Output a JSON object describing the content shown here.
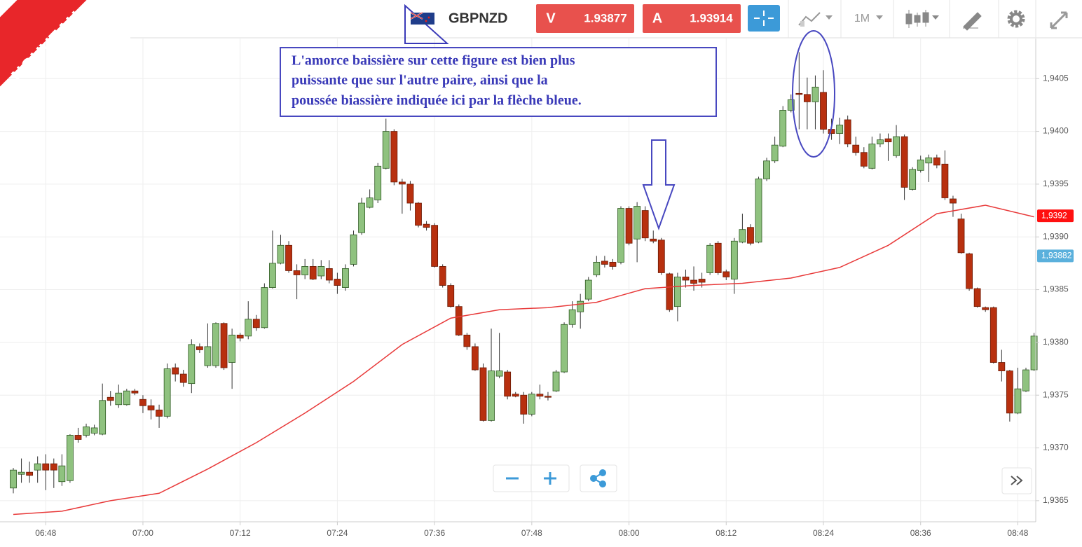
{
  "header": {
    "badge": "NOUVEAU",
    "symbol": "GBPNZD",
    "sell_label": "V",
    "sell_price": "1.93877",
    "buy_label": "A",
    "buy_price": "1.93914",
    "timeframe": "1M"
  },
  "annotation": [
    "L'amorce baissière sur cette figure est bien plus",
    "puissante que sur l'autre paire, ainsi que la",
    "poussée biassière indiquée ici par la flèche bleue."
  ],
  "chart_data": {
    "type": "candlestick",
    "x": [
      "06:44",
      "06:45",
      "06:46",
      "06:47",
      "06:48",
      "06:49",
      "06:50",
      "06:51",
      "06:52",
      "06:53",
      "06:54",
      "06:55",
      "06:56",
      "06:57",
      "06:58",
      "06:59",
      "07:00",
      "07:01",
      "07:02",
      "07:03",
      "07:04",
      "07:05",
      "07:06",
      "07:07",
      "07:08",
      "07:09",
      "07:10",
      "07:11",
      "07:12",
      "07:13",
      "07:14",
      "07:15",
      "07:16",
      "07:17",
      "07:18",
      "07:19",
      "07:20",
      "07:21",
      "07:22",
      "07:23",
      "07:24",
      "07:25",
      "07:26",
      "07:27",
      "07:28",
      "07:29",
      "07:30",
      "07:31",
      "07:32",
      "07:33",
      "07:34",
      "07:35",
      "07:36",
      "07:37",
      "07:38",
      "07:39",
      "07:40",
      "07:41",
      "07:42",
      "07:43",
      "07:44",
      "07:45",
      "07:46",
      "07:47",
      "07:48",
      "07:49",
      "07:50",
      "07:51",
      "07:52",
      "07:53",
      "07:54",
      "07:55",
      "07:56",
      "07:57",
      "07:58",
      "07:59",
      "08:00",
      "08:01",
      "08:02",
      "08:03",
      "08:04",
      "08:05",
      "08:06",
      "08:07",
      "08:08",
      "08:09",
      "08:10",
      "08:11",
      "08:12",
      "08:13",
      "08:14",
      "08:15",
      "08:16",
      "08:17",
      "08:18",
      "08:19",
      "08:20",
      "08:21",
      "08:22",
      "08:23",
      "08:24",
      "08:25",
      "08:26",
      "08:27",
      "08:28",
      "08:29",
      "08:30",
      "08:31",
      "08:32",
      "08:33",
      "08:34",
      "08:35",
      "08:36",
      "08:37",
      "08:38",
      "08:39",
      "08:40",
      "08:41",
      "08:42",
      "08:43",
      "08:44",
      "08:45",
      "08:46",
      "08:47",
      "08:48",
      "08:49",
      "08:50"
    ],
    "open": [
      1.93662,
      1.93675,
      1.93677,
      1.93679,
      1.93685,
      1.93685,
      1.93668,
      1.93669,
      1.93712,
      1.93712,
      1.93714,
      1.93713,
      1.93748,
      1.93741,
      1.93741,
      1.93754,
      1.93746,
      1.9374,
      1.93736,
      1.9373,
      1.93776,
      1.9377,
      1.93761,
      1.93796,
      1.93778,
      1.93778,
      1.93818,
      1.93781,
      1.93807,
      1.93806,
      1.93822,
      1.93814,
      1.93852,
      1.93875,
      1.93892,
      1.93868,
      1.93864,
      1.93872,
      1.93863,
      1.9387,
      1.9386,
      1.93852,
      1.93874,
      1.93904,
      1.93928,
      1.93935,
      1.93965,
      1.94,
      1.93952,
      1.9395,
      1.93932,
      1.93912,
      1.93911,
      1.93872,
      1.93854,
      1.93834,
      1.93807,
      1.93796,
      1.93776,
      1.93726,
      1.93768,
      1.93772,
      1.93751,
      1.9375,
      1.93732,
      1.93751,
      1.93749,
      1.93754,
      1.93772,
      1.93817,
      1.93829,
      1.93841,
      1.93864,
      1.93877,
      1.93876,
      1.93876,
      1.93927,
      1.93898,
      1.93925,
      1.93898,
      1.93897,
      1.93865,
      1.93834,
      1.93862,
      1.93859,
      1.9386,
      1.93866,
      1.93894,
      1.93867,
      1.9386,
      1.93895,
      1.93909,
      1.93895,
      1.93955,
      1.93972,
      1.93986,
      1.9402,
      1.94036,
      1.94035,
      1.94028,
      1.94037,
      1.94002,
      1.93998,
      1.94011,
      1.93987,
      1.9398,
      1.93965,
      1.93988,
      1.93993,
      1.93977,
      1.93995,
      1.93945,
      1.93963,
      1.9397,
      1.93975,
      1.93969,
      1.93936,
      1.93917,
      1.93884,
      1.93851,
      1.93833,
      1.93833,
      1.93781,
      1.93773,
      1.93733,
      1.93754,
      1.93774
    ],
    "high": [
      1.93681,
      1.9369,
      1.93687,
      1.93692,
      1.93694,
      1.9369,
      1.93694,
      1.93713,
      1.93719,
      1.93723,
      1.93722,
      1.93761,
      1.93754,
      1.9376,
      1.93756,
      1.93756,
      1.9375,
      1.93746,
      1.93741,
      1.9378,
      1.9378,
      1.93774,
      1.93803,
      1.93799,
      1.93818,
      1.93819,
      1.93819,
      1.93813,
      1.93809,
      1.93839,
      1.93826,
      1.93856,
      1.93906,
      1.93902,
      1.93896,
      1.93874,
      1.93879,
      1.93879,
      1.93878,
      1.93878,
      1.93866,
      1.93874,
      1.93906,
      1.93937,
      1.93945,
      1.9397,
      1.94012,
      1.94002,
      1.93955,
      1.93953,
      1.93933,
      1.93915,
      1.93913,
      1.93874,
      1.93856,
      1.93836,
      1.93809,
      1.93799,
      1.9378,
      1.93813,
      1.93809,
      1.93774,
      1.93753,
      1.93753,
      1.93753,
      1.9376,
      1.93753,
      1.93774,
      1.93819,
      1.93839,
      1.93846,
      1.93862,
      1.93882,
      1.93882,
      1.93879,
      1.93929,
      1.93929,
      1.93933,
      1.93929,
      1.93906,
      1.93899,
      1.93866,
      1.93866,
      1.93869,
      1.93872,
      1.93866,
      1.93894,
      1.93896,
      1.93869,
      1.93899,
      1.93922,
      1.93912,
      1.93957,
      1.93975,
      1.93995,
      1.94024,
      1.94035,
      1.94075,
      1.94051,
      1.94053,
      1.94058,
      1.94012,
      1.94013,
      1.94015,
      1.93995,
      1.93985,
      1.93995,
      1.93998,
      1.93998,
      1.94006,
      1.93997,
      1.93966,
      1.93977,
      1.93978,
      1.93978,
      1.93982,
      1.93939,
      1.93922,
      1.93885,
      1.93852,
      1.93834,
      1.93834,
      1.93793,
      1.93774,
      1.93776,
      1.93776,
      1.93809
    ],
    "low": [
      1.93657,
      1.93667,
      1.93667,
      1.93667,
      1.9366,
      1.93662,
      1.93664,
      1.93667,
      1.93705,
      1.9371,
      1.93712,
      1.93712,
      1.9374,
      1.93738,
      1.9374,
      1.9375,
      1.93733,
      1.93727,
      1.93719,
      1.93728,
      1.93763,
      1.93758,
      1.93752,
      1.9379,
      1.93776,
      1.93776,
      1.93774,
      1.93756,
      1.93801,
      1.93803,
      1.93811,
      1.93813,
      1.93851,
      1.93874,
      1.93866,
      1.93841,
      1.9386,
      1.93859,
      1.9386,
      1.93856,
      1.93846,
      1.93849,
      1.93872,
      1.93902,
      1.93927,
      1.93932,
      1.93964,
      1.93949,
      1.93922,
      1.93925,
      1.93909,
      1.93906,
      1.93871,
      1.93852,
      1.93833,
      1.93806,
      1.93793,
      1.93773,
      1.93725,
      1.93725,
      1.93766,
      1.93746,
      1.93748,
      1.93723,
      1.9373,
      1.93746,
      1.93745,
      1.93753,
      1.93771,
      1.93814,
      1.93813,
      1.93839,
      1.93862,
      1.93871,
      1.93869,
      1.93874,
      1.93892,
      1.93876,
      1.93896,
      1.93894,
      1.93864,
      1.93829,
      1.9382,
      1.93852,
      1.93849,
      1.93852,
      1.93864,
      1.93864,
      1.93859,
      1.93846,
      1.93894,
      1.93892,
      1.93894,
      1.93953,
      1.9397,
      1.93985,
      1.94018,
      1.94002,
      1.94002,
      1.94002,
      1.93998,
      1.93992,
      1.93988,
      1.93985,
      1.93977,
      1.93965,
      1.93964,
      1.93985,
      1.93972,
      1.93975,
      1.93935,
      1.93944,
      1.93961,
      1.93952,
      1.93965,
      1.93935,
      1.93919,
      1.93884,
      1.93849,
      1.93833,
      1.93829,
      1.9378,
      1.93763,
      1.93725,
      1.93732,
      1.93753,
      1.93773
    ],
    "close": [
      1.93679,
      1.93677,
      1.93674,
      1.93685,
      1.93679,
      1.93679,
      1.93683,
      1.93712,
      1.93708,
      1.9372,
      1.93719,
      1.93745,
      1.93745,
      1.93752,
      1.93754,
      1.93752,
      1.9374,
      1.93736,
      1.9373,
      1.93775,
      1.9377,
      1.93762,
      1.93798,
      1.93793,
      1.93796,
      1.93818,
      1.93776,
      1.93807,
      1.93804,
      1.93822,
      1.93814,
      1.93852,
      1.93875,
      1.93892,
      1.93868,
      1.93864,
      1.93872,
      1.9386,
      1.93872,
      1.93859,
      1.93854,
      1.9387,
      1.93902,
      1.93932,
      1.93937,
      1.93967,
      1.94,
      1.93952,
      1.9395,
      1.93932,
      1.93911,
      1.93909,
      1.93872,
      1.93854,
      1.93834,
      1.93807,
      1.93796,
      1.93774,
      1.93726,
      1.93773,
      1.93773,
      1.93749,
      1.93749,
      1.93732,
      1.93751,
      1.93749,
      1.93748,
      1.93772,
      1.93817,
      1.93831,
      1.93839,
      1.93859,
      1.93876,
      1.93874,
      1.93872,
      1.93927,
      1.93894,
      1.93929,
      1.93899,
      1.93896,
      1.93866,
      1.93831,
      1.93862,
      1.93859,
      1.93856,
      1.93857,
      1.93892,
      1.93866,
      1.93862,
      1.93896,
      1.93907,
      1.93894,
      1.93955,
      1.93972,
      1.93987,
      1.9402,
      1.9403,
      1.94035,
      1.94028,
      1.94042,
      1.94002,
      1.93998,
      1.94006,
      1.93988,
      1.9398,
      1.93967,
      1.93988,
      1.93992,
      1.9399,
      1.93995,
      1.93947,
      1.93964,
      1.93973,
      1.93975,
      1.93968,
      1.93937,
      1.93932,
      1.93885,
      1.93851,
      1.93834,
      1.93831,
      1.93781,
      1.93773,
      1.93733,
      1.93756,
      1.93774,
      1.93806
    ],
    "up_color": "#8fc27f",
    "down_color": "#b8300f",
    "moving_average": {
      "color": "#e83a3a",
      "x": [
        "06:44",
        "06:50",
        "06:56",
        "07:02",
        "07:08",
        "07:14",
        "07:20",
        "07:26",
        "07:32",
        "07:38",
        "07:44",
        "07:50",
        "07:56",
        "08:02",
        "08:08",
        "08:14",
        "08:20",
        "08:26",
        "08:32",
        "08:38",
        "08:44",
        "08:50"
      ],
      "values": [
        1.93637,
        1.9364,
        1.9365,
        1.93657,
        1.9368,
        1.93705,
        1.93733,
        1.93763,
        1.93798,
        1.93823,
        1.93831,
        1.93833,
        1.93838,
        1.93851,
        1.93854,
        1.93856,
        1.93861,
        1.93871,
        1.93892,
        1.93922,
        1.9393,
        1.93919
      ]
    },
    "price_labels": [
      {
        "value": 1.9392,
        "label": "1,9392",
        "color": "#ff1010"
      },
      {
        "value": 1.93882,
        "label": "1,93882",
        "color": "#5ab0dc"
      }
    ],
    "ylim": [
      1.9363,
      1.94088
    ],
    "yticks": [
      {
        "value": 1.9365,
        "label": "1,9365"
      },
      {
        "value": 1.937,
        "label": "1,9370"
      },
      {
        "value": 1.9375,
        "label": "1,9375"
      },
      {
        "value": 1.938,
        "label": "1,9380"
      },
      {
        "value": 1.9385,
        "label": "1,9385"
      },
      {
        "value": 1.939,
        "label": "1,9390"
      },
      {
        "value": 1.9395,
        "label": "1,9395"
      },
      {
        "value": 1.94,
        "label": "1,9400"
      },
      {
        "value": 1.9405,
        "label": "1,9405"
      }
    ],
    "xticks": [
      "06:48",
      "07:00",
      "07:12",
      "07:24",
      "07:36",
      "07:48",
      "08:00",
      "08:12",
      "08:24",
      "08:36",
      "08:48"
    ],
    "grid": true
  }
}
